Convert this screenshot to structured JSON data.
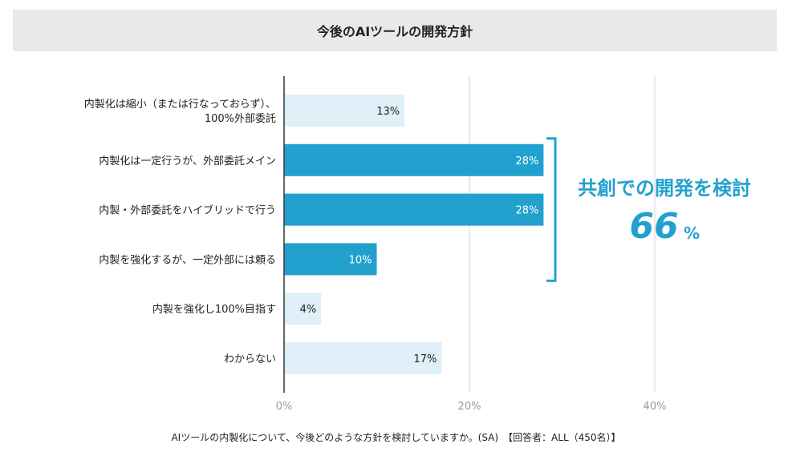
{
  "chart_data": {
    "type": "bar",
    "orientation": "horizontal",
    "title": "今後のAIツールの開発方針",
    "categories": [
      [
        "内製化は縮小（または行なっておらず）、",
        "100%外部委託"
      ],
      [
        "内製化は一定行うが、外部委託メイン"
      ],
      [
        "内製・外部委託をハイブリッドで行う"
      ],
      [
        "内製を強化するが、一定外部には頼る"
      ],
      [
        "内製を強化し100%目指す"
      ],
      [
        "わからない"
      ]
    ],
    "values": [
      13,
      28,
      28,
      10,
      4,
      17
    ],
    "value_labels": [
      "13%",
      "28%",
      "28%",
      "10%",
      "4%",
      "17%"
    ],
    "highlighted": [
      false,
      true,
      true,
      true,
      false,
      false
    ],
    "xlim": [
      0,
      40
    ],
    "xticks": [
      0,
      20,
      40
    ],
    "xtick_labels": [
      "0%",
      "20%",
      "40%"
    ],
    "grid": true,
    "annotation": {
      "text": "共創での開発を検討",
      "value": "66",
      "unit": "%",
      "spans_categories": [
        1,
        3
      ]
    },
    "caption": "AIツールの内製化について、今後どのような方針を検討していますか。(SA)　【回答者：ALL（450名）】",
    "colors": {
      "highlight": "#22a1cf",
      "normal": "#dff0f8",
      "highlight_text": "#ffffff",
      "normal_text": "#222222",
      "annotation": "#22a1cf",
      "grid": "#d4d4d4",
      "axis": "#333333",
      "tick": "#999999"
    }
  }
}
